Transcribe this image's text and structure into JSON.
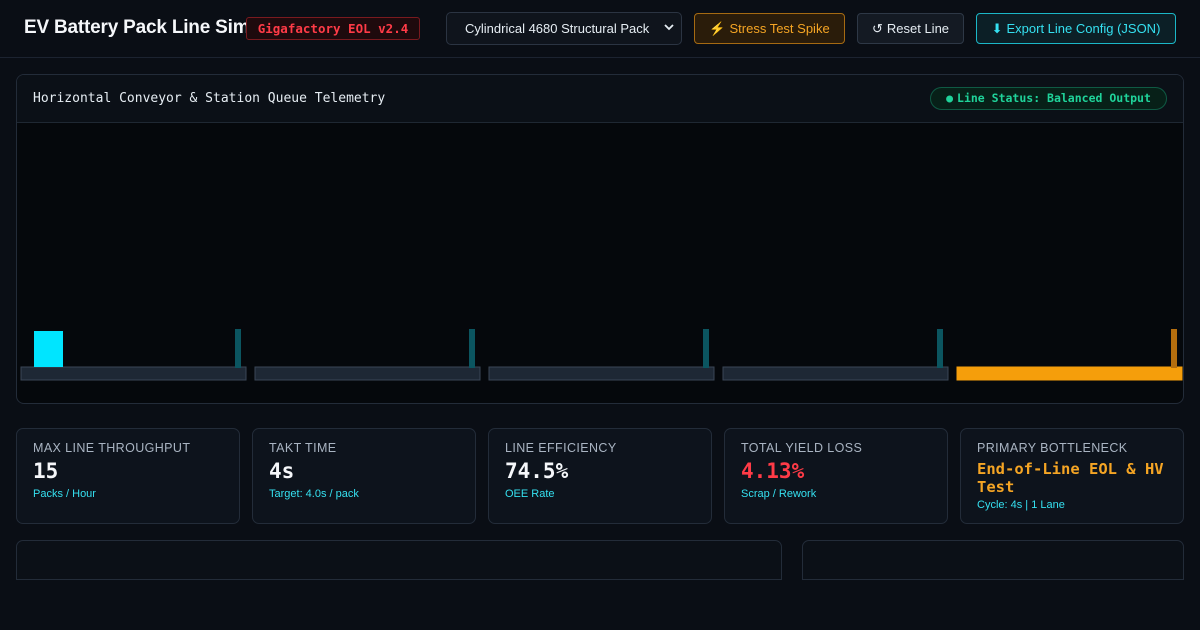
{
  "header": {
    "title": "EV Battery Pack Line Sim",
    "version_badge": "Gigafactory EOL v2.4",
    "pack_select": {
      "selected": "Cylindrical 4680 Structural Pack"
    },
    "buttons": {
      "stress": {
        "icon": "⚡",
        "label": "Stress Test Spike"
      },
      "reset": {
        "icon": "↺",
        "label": "Reset Line"
      },
      "export": {
        "icon": "⬇",
        "label": "Export Line Config (JSON)"
      }
    }
  },
  "telemetry": {
    "title": "Horizontal Conveyor & Station Queue Telemetry",
    "status": {
      "dot": "●",
      "label": "Line Status: Balanced Output"
    },
    "stations": [
      {
        "state": "active",
        "queue_level": 1
      },
      {
        "state": "active",
        "queue_level": 0
      },
      {
        "state": "active",
        "queue_level": 0
      },
      {
        "state": "active",
        "queue_level": 0
      },
      {
        "state": "bottleneck",
        "queue_level": 0
      }
    ]
  },
  "kpis": [
    {
      "id": "throughput",
      "label": "Max Line Throughput",
      "value": "15",
      "sub": "Packs / Hour",
      "style": "normal"
    },
    {
      "id": "takt",
      "label": "Takt Time",
      "value": "4s",
      "sub": "Target: 4.0s / pack",
      "style": "normal"
    },
    {
      "id": "efficiency",
      "label": "Line Efficiency",
      "value": "74.5%",
      "sub": "OEE Rate",
      "style": "normal"
    },
    {
      "id": "yield-loss",
      "label": "Total Yield Loss",
      "value": "4.13%",
      "sub": "Scrap / Rework",
      "style": "red"
    },
    {
      "id": "bottleneck",
      "label": "Primary Bottleneck",
      "value": "End-of-Line EOL & HV Test",
      "sub": "Cycle: 4s | 1 Lane",
      "style": "amber"
    }
  ],
  "colors": {
    "accent_cyan": "#00e5ff",
    "bottleneck_amber": "#f59e0b",
    "danger_red": "#ff3b47",
    "ok_green": "#1fd39a"
  }
}
